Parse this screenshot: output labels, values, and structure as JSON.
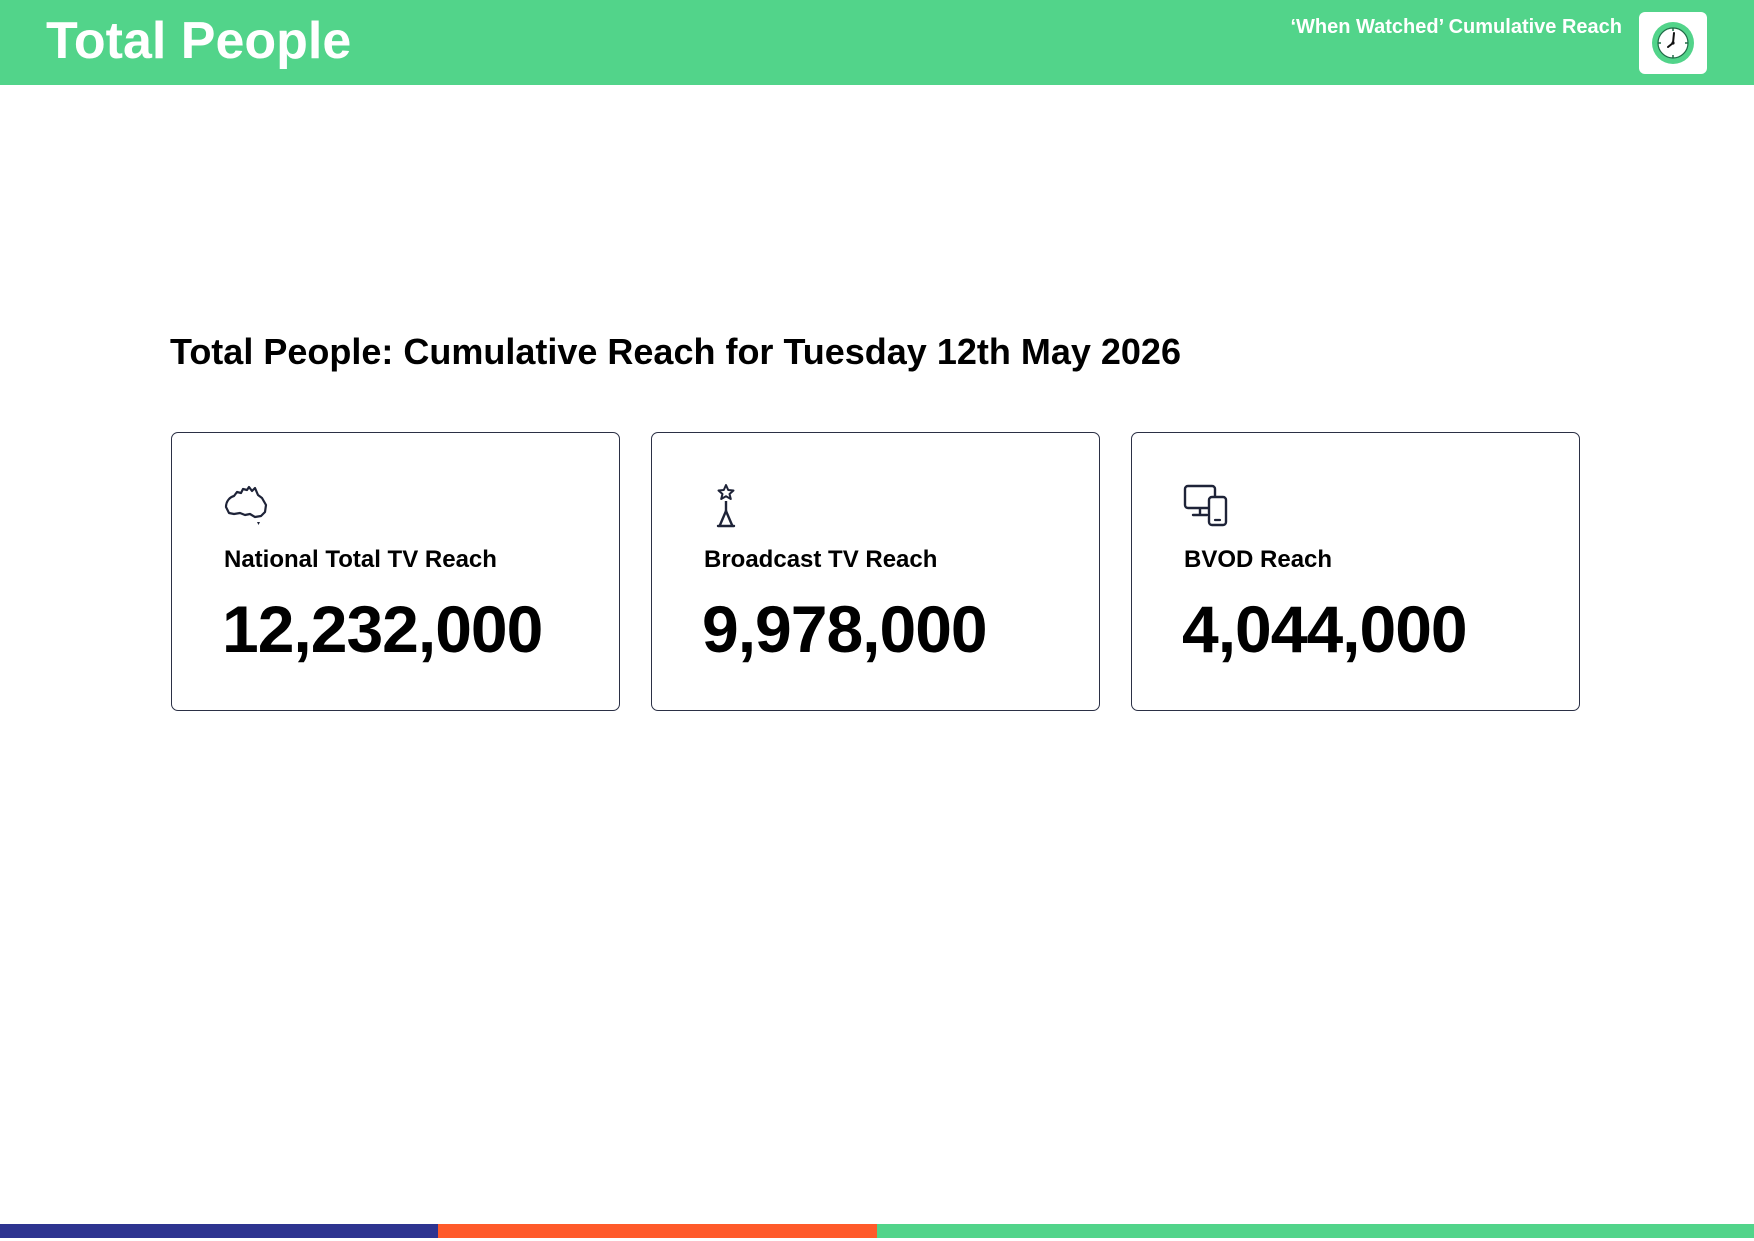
{
  "header": {
    "title": "Total People",
    "subtitle": "‘When Watched’ Cumulative Reach",
    "logo_icon": "clock-icon"
  },
  "report": {
    "heading": "Total People: Cumulative Reach for Tuesday 12th May 2026"
  },
  "cards": [
    {
      "icon": "australia-map-icon",
      "label": "National Total TV Reach",
      "value": "12,232,000"
    },
    {
      "icon": "broadcast-tower-icon",
      "label": "Broadcast TV Reach",
      "value": "9,978,000"
    },
    {
      "icon": "devices-icon",
      "label": "BVOD Reach",
      "value": "4,044,000"
    }
  ],
  "colors": {
    "header_green": "#52d48a",
    "footer_navy": "#2e3490",
    "footer_orange": "#ff5a2a",
    "footer_green": "#52d48a",
    "card_border": "#2b3045"
  }
}
